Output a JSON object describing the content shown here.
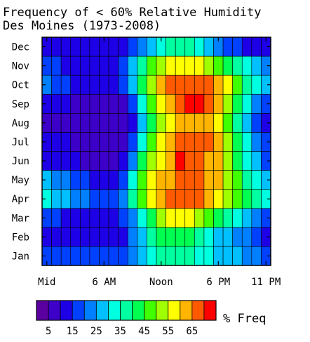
{
  "chart_data": {
    "type": "heatmap",
    "title": "Frequency of < 60% Relative Humidity",
    "subtitle": "Des Moines (1973-2008)",
    "colorbar_label": "% Freq",
    "months": [
      "Jan",
      "Feb",
      "Mar",
      "Apr",
      "May",
      "Jun",
      "Jul",
      "Aug",
      "Sep",
      "Oct",
      "Nov",
      "Dec"
    ],
    "hours": [
      0,
      1,
      2,
      3,
      4,
      5,
      6,
      7,
      8,
      9,
      10,
      11,
      12,
      13,
      14,
      15,
      16,
      17,
      18,
      19,
      20,
      21,
      22,
      23
    ],
    "x_tick_labels": [
      {
        "hour": 0,
        "label": "Mid"
      },
      {
        "hour": 6,
        "label": "6 AM"
      },
      {
        "hour": 12,
        "label": "Noon"
      },
      {
        "hour": 18,
        "label": "6 PM"
      },
      {
        "hour": 23,
        "label": "11 PM"
      }
    ],
    "colorbar": {
      "min": 0,
      "max": 75,
      "step": 5,
      "tick_labels": [
        "5",
        "15",
        "25",
        "35",
        "45",
        "55",
        "65"
      ],
      "tick_values": [
        5,
        15,
        25,
        35,
        45,
        55,
        65
      ],
      "colors": [
        "#5a00a0",
        "#3c00c8",
        "#1e00e6",
        "#0040ff",
        "#0080ff",
        "#00c0ff",
        "#00ffe0",
        "#00ffa0",
        "#00ff50",
        "#40ff00",
        "#a0ff00",
        "#ffff00",
        "#ffb400",
        "#ff5a00",
        "#ff0000"
      ]
    },
    "values": [
      [
        17,
        17,
        17,
        17,
        17,
        17,
        17,
        17,
        17,
        22,
        27,
        32,
        37,
        37,
        37,
        37,
        32,
        32,
        27,
        27,
        27,
        22,
        22,
        17
      ],
      [
        12,
        12,
        12,
        12,
        12,
        12,
        12,
        12,
        12,
        22,
        27,
        37,
        42,
        42,
        42,
        42,
        37,
        32,
        27,
        27,
        22,
        22,
        17,
        12
      ],
      [
        17,
        17,
        12,
        12,
        12,
        12,
        12,
        12,
        17,
        22,
        32,
        42,
        52,
        57,
        57,
        57,
        52,
        47,
        42,
        37,
        32,
        27,
        22,
        17
      ],
      [
        32,
        27,
        27,
        22,
        22,
        17,
        17,
        17,
        22,
        37,
        47,
        57,
        62,
        67,
        67,
        67,
        67,
        62,
        57,
        52,
        47,
        42,
        37,
        32
      ],
      [
        27,
        22,
        22,
        17,
        17,
        12,
        12,
        12,
        17,
        32,
        47,
        57,
        62,
        62,
        67,
        67,
        67,
        62,
        62,
        52,
        47,
        37,
        32,
        27
      ],
      [
        12,
        12,
        12,
        12,
        7,
        7,
        7,
        7,
        12,
        22,
        42,
        52,
        57,
        62,
        72,
        67,
        67,
        62,
        62,
        52,
        42,
        32,
        27,
        17
      ],
      [
        12,
        12,
        12,
        7,
        7,
        7,
        7,
        7,
        7,
        17,
        32,
        47,
        57,
        62,
        67,
        67,
        67,
        67,
        62,
        52,
        42,
        32,
        22,
        17
      ],
      [
        7,
        7,
        7,
        7,
        7,
        7,
        7,
        7,
        7,
        12,
        27,
        42,
        52,
        57,
        62,
        62,
        62,
        62,
        57,
        47,
        37,
        27,
        17,
        12
      ],
      [
        12,
        12,
        12,
        7,
        7,
        7,
        7,
        7,
        7,
        17,
        32,
        47,
        57,
        62,
        67,
        72,
        72,
        67,
        62,
        52,
        42,
        32,
        22,
        17
      ],
      [
        22,
        17,
        17,
        12,
        12,
        12,
        12,
        12,
        17,
        27,
        42,
        52,
        62,
        67,
        67,
        67,
        67,
        67,
        62,
        57,
        47,
        37,
        32,
        27
      ],
      [
        17,
        17,
        12,
        12,
        12,
        12,
        12,
        12,
        17,
        27,
        37,
        47,
        52,
        57,
        57,
        57,
        57,
        52,
        47,
        42,
        37,
        32,
        27,
        22
      ],
      [
        12,
        12,
        12,
        12,
        12,
        12,
        12,
        12,
        12,
        17,
        22,
        27,
        32,
        37,
        37,
        37,
        32,
        27,
        22,
        17,
        17,
        12,
        12,
        12
      ]
    ]
  }
}
